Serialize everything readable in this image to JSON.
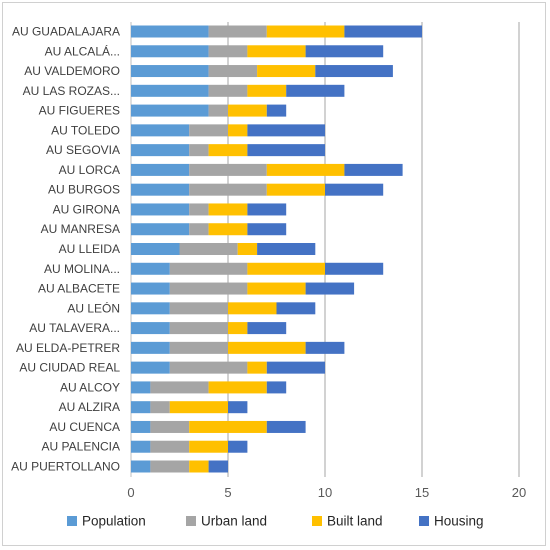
{
  "chart_data": {
    "type": "bar",
    "orientation": "horizontal",
    "stacked": true,
    "categories": [
      "AU GUADALAJARA",
      "AU ALCALÁ...",
      "AU VALDEMORO",
      "AU LAS ROZAS...",
      "AU FIGUERES",
      "AU TOLEDO",
      "AU SEGOVIA",
      "AU LORCA",
      "AU BURGOS",
      "AU GIRONA",
      "AU MANRESA",
      "AU LLEIDA",
      "AU MOLINA...",
      "AU ALBACETE",
      "AU LEÓN",
      "AU TALAVERA...",
      "AU ELDA-PETRER",
      "AU CIUDAD REAL",
      "AU ALCOY",
      "AU ALZIRA",
      "AU CUENCA",
      "AU PALENCIA",
      "AU PUERTOLLANO"
    ],
    "series": [
      {
        "name": "Population",
        "color": "#5B9BD5",
        "values": [
          4,
          4,
          4,
          4,
          4,
          3,
          3,
          3,
          3,
          3,
          3,
          2.5,
          2,
          2,
          2,
          2,
          2,
          2,
          1,
          1,
          1,
          1,
          1
        ]
      },
      {
        "name": "Urban land",
        "color": "#A5A5A5",
        "values": [
          3,
          2,
          2.5,
          2,
          1,
          2,
          1,
          4,
          4,
          1,
          1,
          3,
          4,
          4,
          3,
          3,
          3,
          4,
          3,
          1,
          2,
          2,
          2
        ]
      },
      {
        "name": "Built land",
        "color": "#FFC000",
        "values": [
          4,
          3,
          3,
          2,
          2,
          1,
          2,
          4,
          3,
          2,
          2,
          1,
          4,
          3,
          2.5,
          1,
          4,
          1,
          3,
          3,
          4,
          2,
          1
        ]
      },
      {
        "name": "Housing",
        "color": "#4472C4",
        "values": [
          4,
          4,
          4,
          3,
          1,
          4,
          4,
          3,
          3,
          2,
          2,
          3,
          3,
          2.5,
          2,
          2,
          2,
          3,
          1,
          1,
          2,
          1,
          1
        ]
      }
    ],
    "xlim": [
      0,
      20
    ],
    "x_ticks": [
      "0",
      "5",
      "10",
      "15",
      "20"
    ],
    "grid": "vertical",
    "legend_position": "bottom"
  }
}
